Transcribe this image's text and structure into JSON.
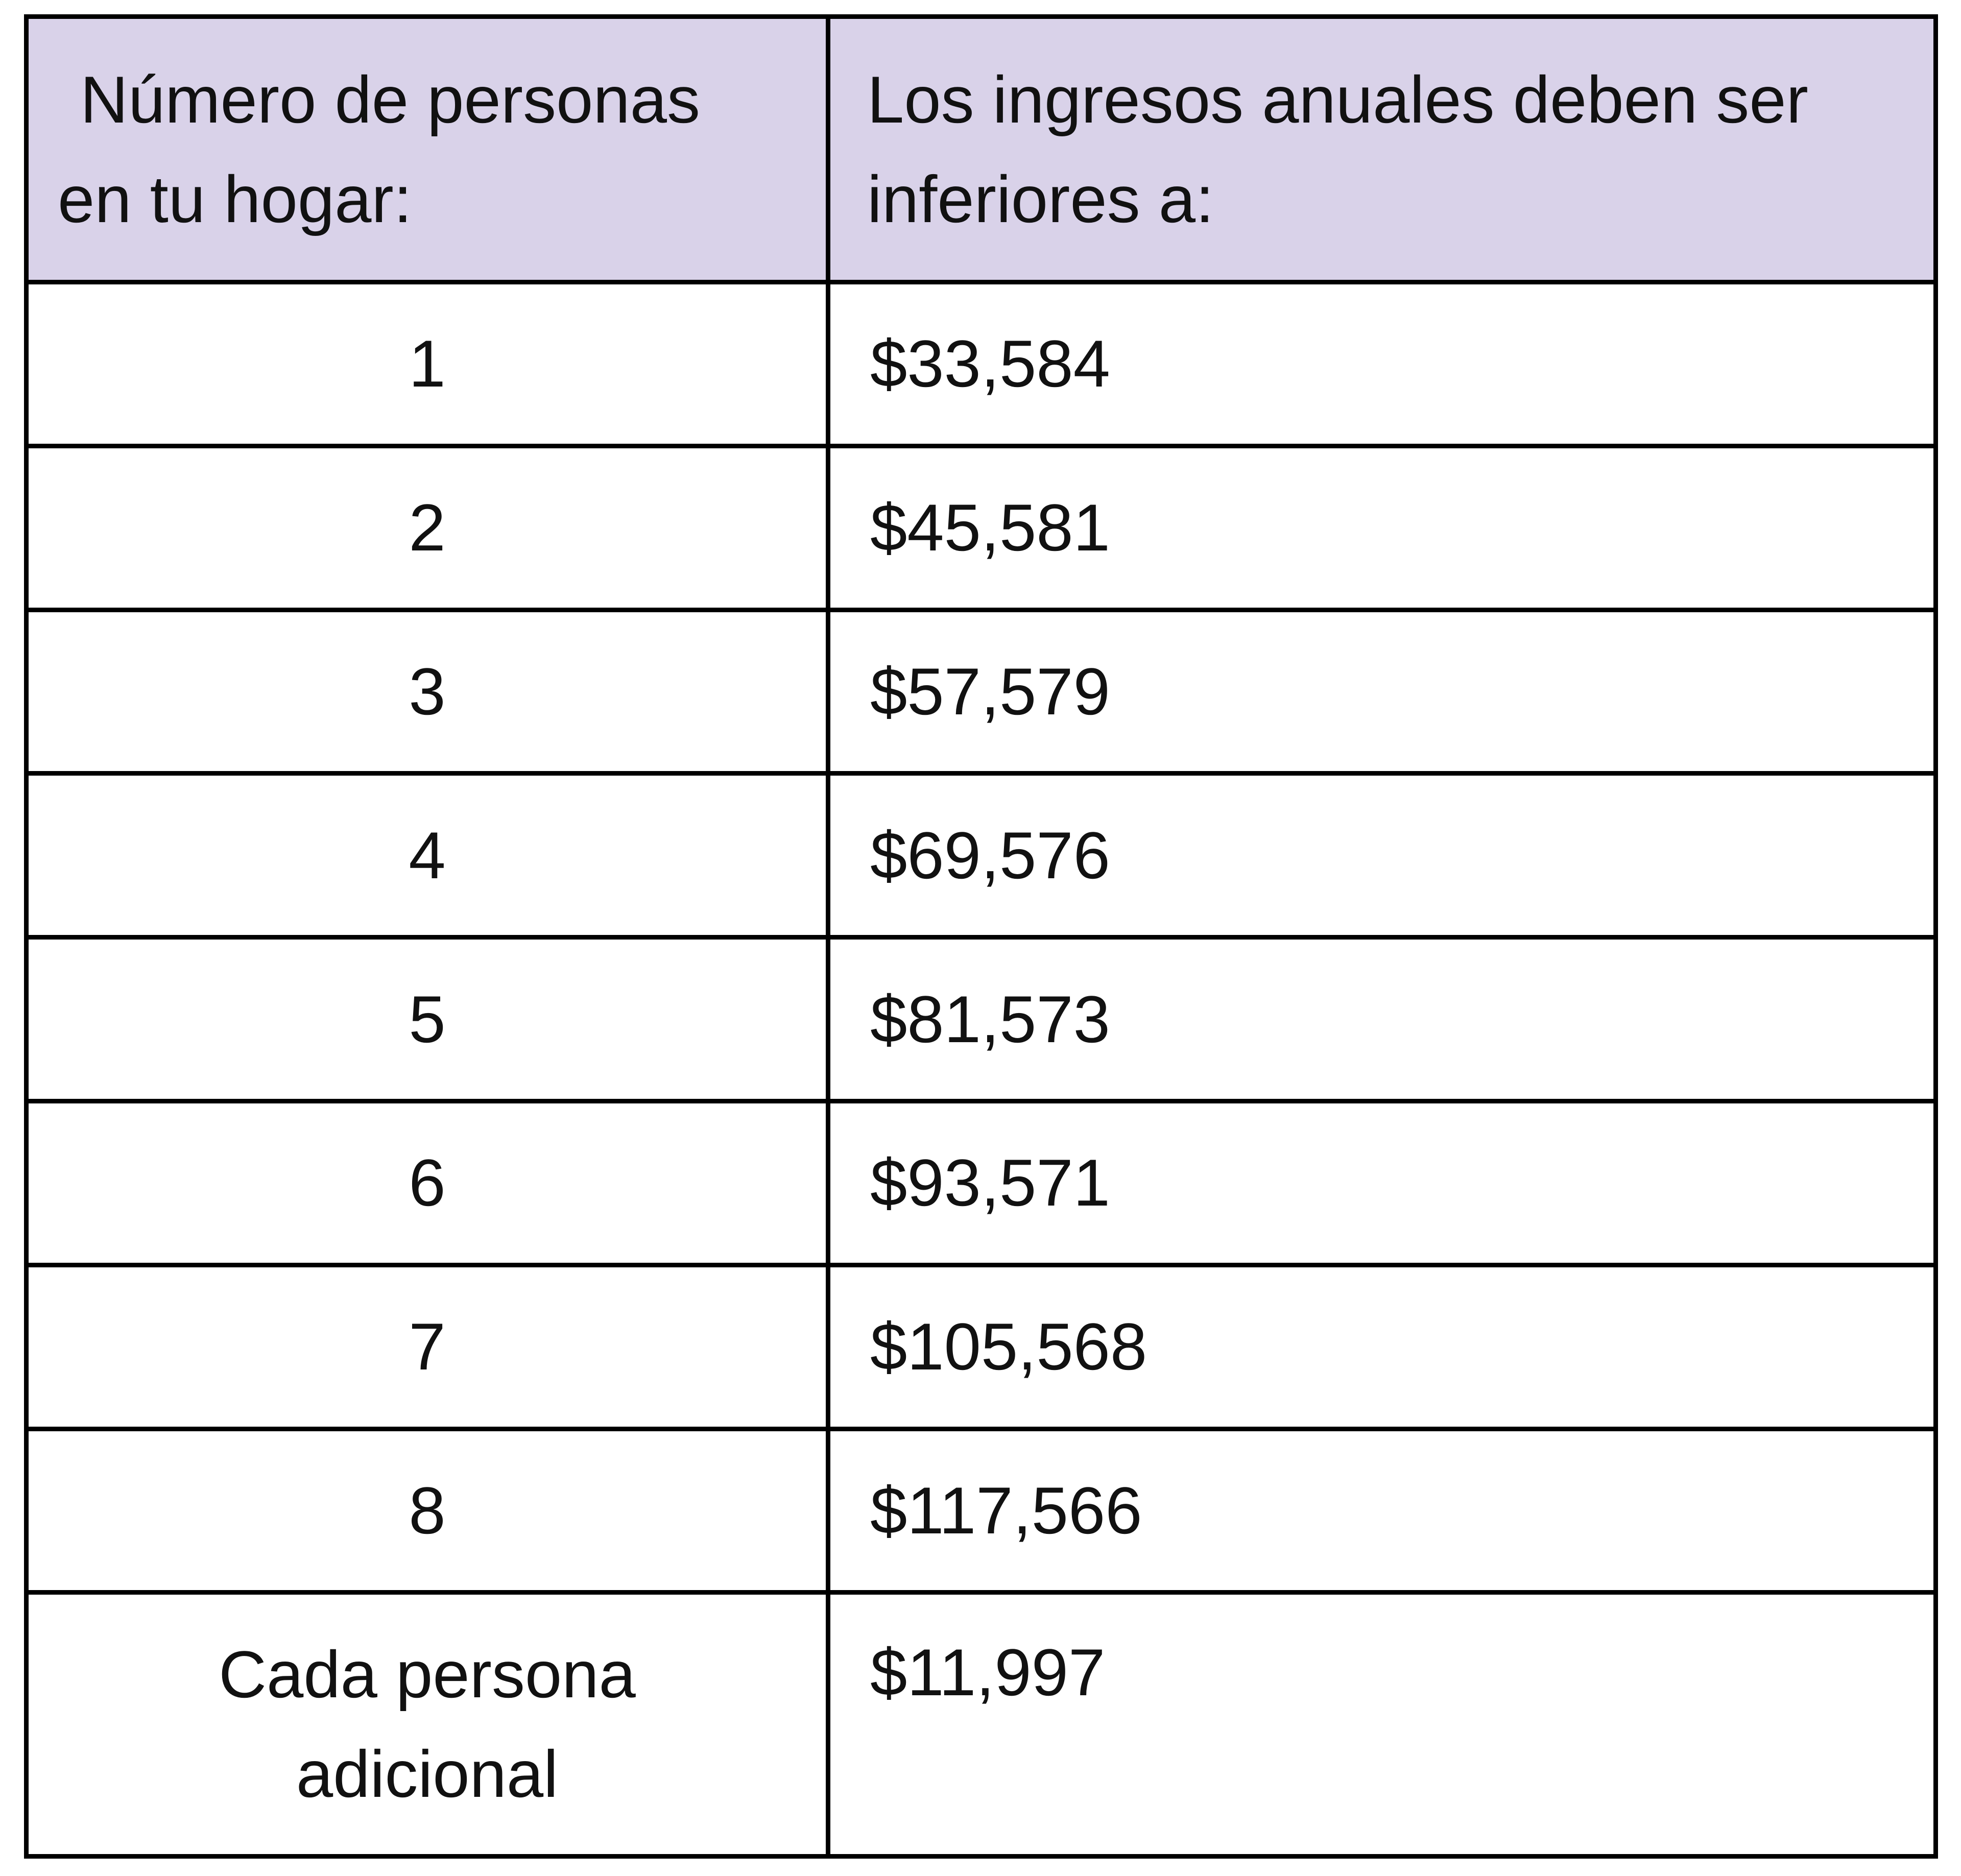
{
  "colors": {
    "header_bg": "#D9D2E9",
    "border": "#000000",
    "text": "#111111",
    "page_bg": "#FFFFFF"
  },
  "table": {
    "header": {
      "household_label": "Número de personas\nen tu hogar:",
      "income_label": "Los ingresos anuales deben ser\ninferiores a:"
    },
    "rows": [
      {
        "household": "1",
        "income": "$33,584"
      },
      {
        "household": "2",
        "income": "$45,581"
      },
      {
        "household": "3",
        "income": "$57,579"
      },
      {
        "household": "4",
        "income": "$69,576"
      },
      {
        "household": "5",
        "income": "$81,573"
      },
      {
        "household": "6",
        "income": "$93,571"
      },
      {
        "household": "7",
        "income": "$105,568"
      },
      {
        "household": "8",
        "income": "$117,566"
      },
      {
        "household": "Cada persona\nadicional",
        "income": "$11,997"
      }
    ]
  }
}
